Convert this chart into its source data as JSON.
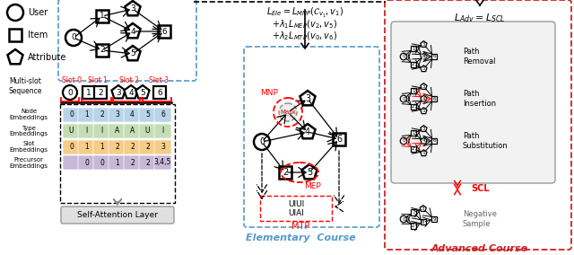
{
  "bg_color": "#ffffff",
  "blue_dash_color": "#5599cc",
  "red_dash_color": "#cc2222",
  "row_colors": [
    "#b8d4e8",
    "#c5ddb5",
    "#f5cc88",
    "#c8b8d8"
  ],
  "node_embed": [
    "0",
    "1",
    "2",
    "3",
    "4",
    "5",
    "6"
  ],
  "type_embed": [
    "U",
    "I",
    "I",
    "A",
    "A",
    "U",
    "I"
  ],
  "slot_embed": [
    "0",
    "1",
    "1",
    "2",
    "2",
    "2",
    "3"
  ],
  "prec_embed": [
    "",
    "0",
    "0",
    "1",
    "2",
    "2",
    "3,4,5"
  ],
  "slot_labels": [
    "Slot 0",
    "Slot 1",
    "Slot 2",
    "Slot 3"
  ],
  "embed_labels": [
    "Node\nEmbeddings",
    "Type\nEmbeddings",
    "Slot\nEmbeddings",
    "Precursor\nEmbeddings"
  ],
  "elem_label": "Elementary  Course",
  "adv_label": "Advanced Course"
}
